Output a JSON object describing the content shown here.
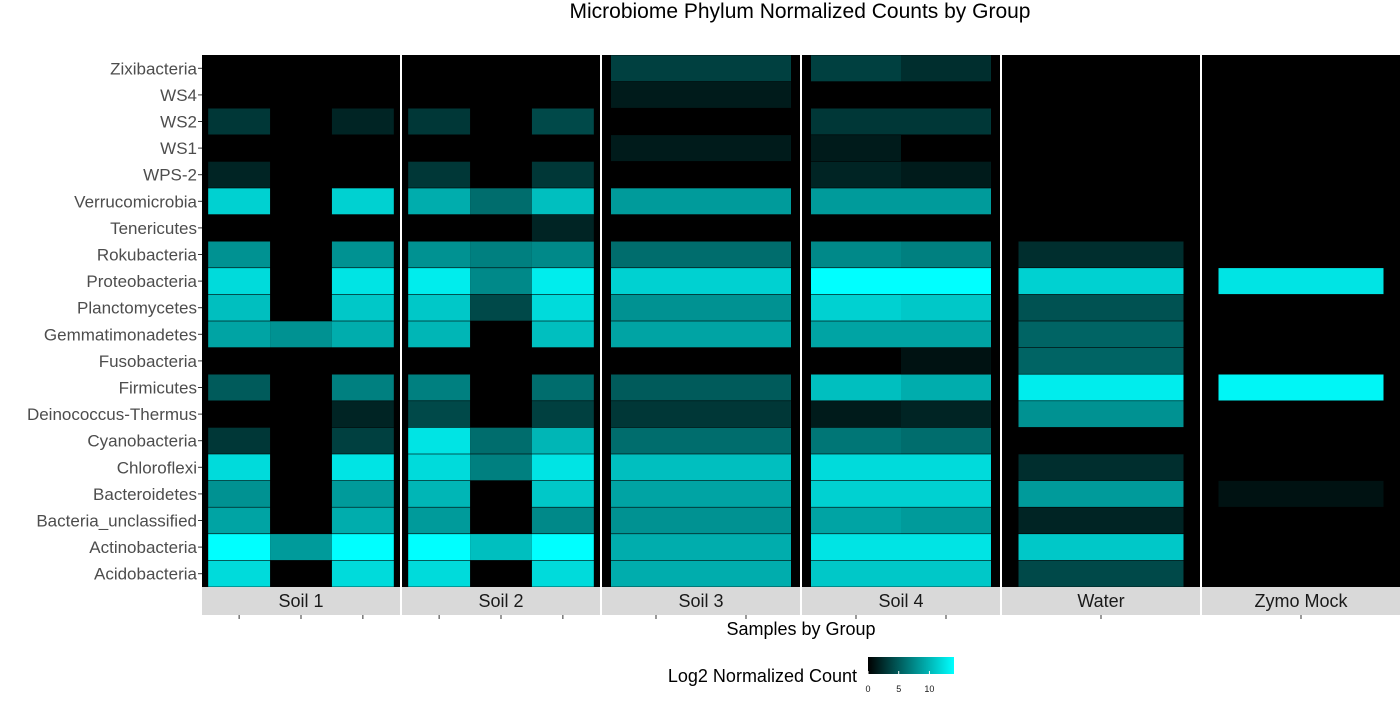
{
  "chart_data": {
    "type": "heatmap",
    "title": "Microbiome Phylum Normalized Counts by Group",
    "xlabel": "Samples by Group",
    "legend": {
      "title": "Log2 Normalized Count",
      "ticks": [
        0,
        5,
        10
      ],
      "range": [
        0,
        14
      ],
      "low_color": "#000000",
      "high_color": "#00ffff",
      "placement": "bottom"
    },
    "colors": {
      "panel_bg": "#000000",
      "strip_bg": "#d9d9d9",
      "text": "#4d4d4d"
    },
    "phyla": [
      "Zixibacteria",
      "WS4",
      "WS2",
      "WS1",
      "WPS-2",
      "Verrucomicrobia",
      "Tenericutes",
      "Rokubacteria",
      "Proteobacteria",
      "Planctomycetes",
      "Gemmatimonadetes",
      "Fusobacteria",
      "Firmicutes",
      "Deinococcus-Thermus",
      "Cyanobacteria",
      "Chloroflexi",
      "Bacteroidetes",
      "Bacteria_unclassified",
      "Actinobacteria",
      "Acidobacteria"
    ],
    "groups": [
      {
        "name": "Soil 1",
        "samples": 3,
        "values": [
          [
            null,
            null,
            null
          ],
          [
            null,
            null,
            null
          ],
          [
            3,
            null,
            2
          ],
          [
            null,
            null,
            null
          ],
          [
            2,
            null,
            null
          ],
          [
            11.5,
            null,
            11.5
          ],
          [
            null,
            null,
            null
          ],
          [
            8,
            null,
            8
          ],
          [
            12,
            null,
            12.5
          ],
          [
            10.5,
            null,
            11
          ],
          [
            9,
            8,
            9.5
          ],
          [
            null,
            null,
            null
          ],
          [
            5,
            null,
            7
          ],
          [
            null,
            null,
            2
          ],
          [
            3,
            null,
            3.5
          ],
          [
            12,
            null,
            12.5
          ],
          [
            8,
            null,
            8.5
          ],
          [
            9,
            null,
            9.5
          ],
          [
            14,
            8.5,
            14.5
          ],
          [
            12,
            null,
            12
          ]
        ]
      },
      {
        "name": "Soil 2",
        "samples": 3,
        "values": [
          [
            null,
            null,
            null
          ],
          [
            null,
            null,
            null
          ],
          [
            3,
            null,
            4
          ],
          [
            null,
            null,
            null
          ],
          [
            3,
            null,
            3
          ],
          [
            9.5,
            6,
            10.5
          ],
          [
            null,
            null,
            2
          ],
          [
            8,
            7,
            7.5
          ],
          [
            13,
            7.5,
            13
          ],
          [
            11,
            4,
            12
          ],
          [
            10,
            null,
            10.5
          ],
          [
            null,
            null,
            null
          ],
          [
            7,
            null,
            6
          ],
          [
            4,
            null,
            3.5
          ],
          [
            12.5,
            6,
            10
          ],
          [
            12,
            7,
            12.5
          ],
          [
            10,
            null,
            11
          ],
          [
            8.5,
            null,
            7.5
          ],
          [
            14.5,
            10.5,
            14.5
          ],
          [
            12,
            null,
            12
          ]
        ]
      },
      {
        "name": "Soil 3",
        "samples": 2,
        "values": [
          [
            3.5,
            3.5
          ],
          [
            1.5,
            1.5
          ],
          [
            null,
            null
          ],
          [
            1.5,
            1.5
          ],
          [
            null,
            null
          ],
          [
            8.5,
            8.5
          ],
          [
            null,
            null
          ],
          [
            6,
            6
          ],
          [
            11.5,
            11.5
          ],
          [
            8,
            8
          ],
          [
            9,
            9
          ],
          [
            null,
            null
          ],
          [
            5,
            5
          ],
          [
            3,
            3
          ],
          [
            6,
            6
          ],
          [
            10.5,
            10.5
          ],
          [
            9,
            9
          ],
          [
            8,
            8
          ],
          [
            9.5,
            9.5
          ],
          [
            9.5,
            9.5
          ]
        ]
      },
      {
        "name": "Soil 4",
        "samples": 2,
        "values": [
          [
            3.5,
            2.5
          ],
          [
            null,
            null
          ],
          [
            3,
            3
          ],
          [
            1.5,
            null
          ],
          [
            2,
            1.5
          ],
          [
            8.5,
            8.5
          ],
          [
            null,
            null
          ],
          [
            7.5,
            7
          ],
          [
            14,
            15
          ],
          [
            11.5,
            11
          ],
          [
            9,
            9
          ],
          [
            null,
            1
          ],
          [
            10.5,
            9.5
          ],
          [
            1.5,
            2
          ],
          [
            6.5,
            6
          ],
          [
            12,
            12
          ],
          [
            11.5,
            11.5
          ],
          [
            9,
            8.5
          ],
          [
            12.5,
            12.5
          ],
          [
            11,
            11
          ]
        ]
      },
      {
        "name": "Water",
        "samples": 1,
        "values": [
          [
            null
          ],
          [
            null
          ],
          [
            null
          ],
          [
            null
          ],
          [
            null
          ],
          [
            null
          ],
          [
            null
          ],
          [
            2.5
          ],
          [
            11.5
          ],
          [
            4.5
          ],
          [
            5.5
          ],
          [
            5.5
          ],
          [
            13
          ],
          [
            8
          ],
          [
            null
          ],
          [
            2.5
          ],
          [
            8.5
          ],
          [
            2
          ],
          [
            11
          ],
          [
            4
          ]
        ]
      },
      {
        "name": "Zymo Mock",
        "samples": 1,
        "values": [
          [
            null
          ],
          [
            null
          ],
          [
            null
          ],
          [
            null
          ],
          [
            null
          ],
          [
            null
          ],
          [
            null
          ],
          [
            null
          ],
          [
            12.5
          ],
          [
            null
          ],
          [
            null
          ],
          [
            null
          ],
          [
            13.5
          ],
          [
            null
          ],
          [
            null
          ],
          [
            null
          ],
          [
            1
          ],
          [
            null
          ],
          [
            null
          ],
          [
            null
          ]
        ]
      }
    ]
  }
}
